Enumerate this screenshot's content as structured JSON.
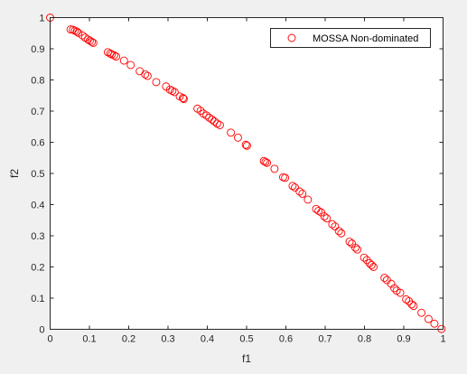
{
  "chart_data": {
    "type": "scatter",
    "xlabel": "f1",
    "ylabel": "f2",
    "xlim": [
      0,
      1
    ],
    "ylim": [
      0,
      1
    ],
    "x_ticks": [
      "0",
      "0.1",
      "0.2",
      "0.3",
      "0.4",
      "0.5",
      "0.6",
      "0.7",
      "0.8",
      "0.9",
      "1"
    ],
    "y_ticks": [
      "0",
      "0.1",
      "0.2",
      "0.3",
      "0.4",
      "0.5",
      "0.6",
      "0.7",
      "0.8",
      "0.9",
      "1"
    ],
    "grid": false,
    "legend": {
      "position": "top-right",
      "entries": [
        "MOSSA Non-dominated"
      ]
    },
    "series": [
      {
        "name": "MOSSA Non-dominated",
        "marker": "circle-open",
        "color": "#ff0000",
        "points": [
          [
            0.0,
            1.0
          ],
          [
            0.052,
            0.962
          ],
          [
            0.058,
            0.961
          ],
          [
            0.063,
            0.958
          ],
          [
            0.068,
            0.955
          ],
          [
            0.072,
            0.951
          ],
          [
            0.082,
            0.943
          ],
          [
            0.089,
            0.936
          ],
          [
            0.096,
            0.93
          ],
          [
            0.101,
            0.926
          ],
          [
            0.106,
            0.922
          ],
          [
            0.11,
            0.919
          ],
          [
            0.147,
            0.889
          ],
          [
            0.153,
            0.885
          ],
          [
            0.157,
            0.882
          ],
          [
            0.163,
            0.879
          ],
          [
            0.168,
            0.875
          ],
          [
            0.188,
            0.862
          ],
          [
            0.205,
            0.848
          ],
          [
            0.228,
            0.828
          ],
          [
            0.242,
            0.818
          ],
          [
            0.248,
            0.813
          ],
          [
            0.27,
            0.793
          ],
          [
            0.295,
            0.779
          ],
          [
            0.305,
            0.769
          ],
          [
            0.311,
            0.765
          ],
          [
            0.317,
            0.761
          ],
          [
            0.33,
            0.747
          ],
          [
            0.338,
            0.742
          ],
          [
            0.34,
            0.739
          ],
          [
            0.375,
            0.708
          ],
          [
            0.383,
            0.701
          ],
          [
            0.39,
            0.692
          ],
          [
            0.398,
            0.686
          ],
          [
            0.405,
            0.679
          ],
          [
            0.412,
            0.673
          ],
          [
            0.418,
            0.667
          ],
          [
            0.425,
            0.66
          ],
          [
            0.432,
            0.655
          ],
          [
            0.46,
            0.631
          ],
          [
            0.478,
            0.615
          ],
          [
            0.498,
            0.592
          ],
          [
            0.501,
            0.589
          ],
          [
            0.544,
            0.54
          ],
          [
            0.548,
            0.537
          ],
          [
            0.552,
            0.534
          ],
          [
            0.571,
            0.515
          ],
          [
            0.593,
            0.488
          ],
          [
            0.598,
            0.486
          ],
          [
            0.617,
            0.46
          ],
          [
            0.623,
            0.455
          ],
          [
            0.635,
            0.442
          ],
          [
            0.642,
            0.435
          ],
          [
            0.656,
            0.416
          ],
          [
            0.677,
            0.386
          ],
          [
            0.683,
            0.38
          ],
          [
            0.69,
            0.375
          ],
          [
            0.698,
            0.362
          ],
          [
            0.704,
            0.356
          ],
          [
            0.718,
            0.337
          ],
          [
            0.725,
            0.33
          ],
          [
            0.735,
            0.315
          ],
          [
            0.741,
            0.308
          ],
          [
            0.762,
            0.281
          ],
          [
            0.768,
            0.275
          ],
          [
            0.777,
            0.262
          ],
          [
            0.782,
            0.256
          ],
          [
            0.799,
            0.23
          ],
          [
            0.806,
            0.222
          ],
          [
            0.813,
            0.212
          ],
          [
            0.818,
            0.206
          ],
          [
            0.823,
            0.2
          ],
          [
            0.851,
            0.165
          ],
          [
            0.857,
            0.158
          ],
          [
            0.868,
            0.146
          ],
          [
            0.876,
            0.132
          ],
          [
            0.882,
            0.124
          ],
          [
            0.891,
            0.117
          ],
          [
            0.906,
            0.096
          ],
          [
            0.913,
            0.09
          ],
          [
            0.92,
            0.08
          ],
          [
            0.925,
            0.075
          ],
          [
            0.945,
            0.053
          ],
          [
            0.963,
            0.033
          ],
          [
            0.978,
            0.018
          ],
          [
            0.996,
            0.001
          ]
        ]
      }
    ]
  }
}
